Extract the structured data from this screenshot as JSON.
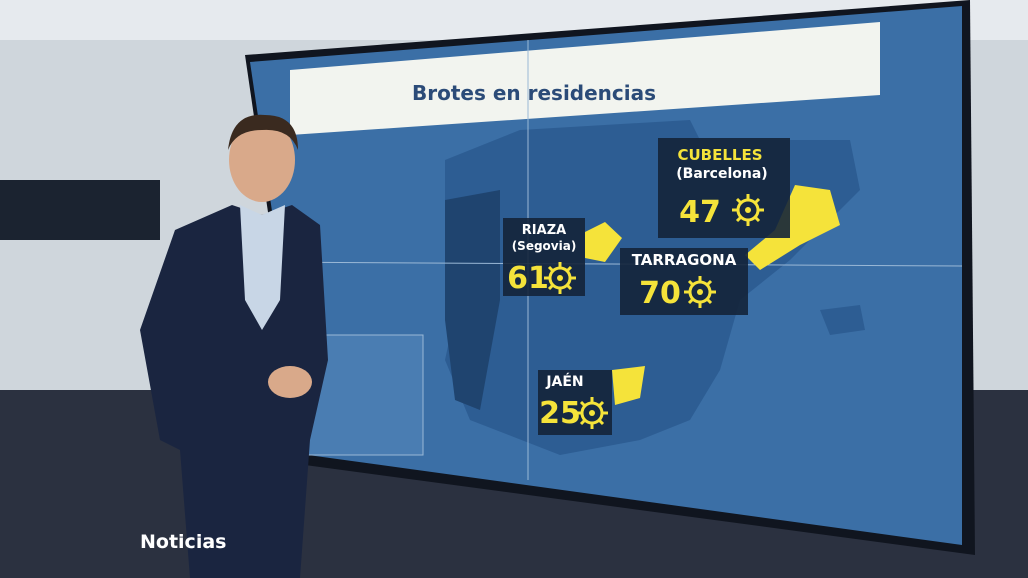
{
  "screen": {
    "title": "Brotes en residencias",
    "labels": [
      {
        "place": "CUBELLES",
        "region": "(Barcelona)",
        "count": 47
      },
      {
        "place": "RIAZA",
        "region": "(Segovia)",
        "count": 61
      },
      {
        "place": "TARRAGONA",
        "count": 70
      },
      {
        "place": "JAÉN",
        "count": 25
      }
    ]
  },
  "logo": {
    "text": "Noticias"
  }
}
